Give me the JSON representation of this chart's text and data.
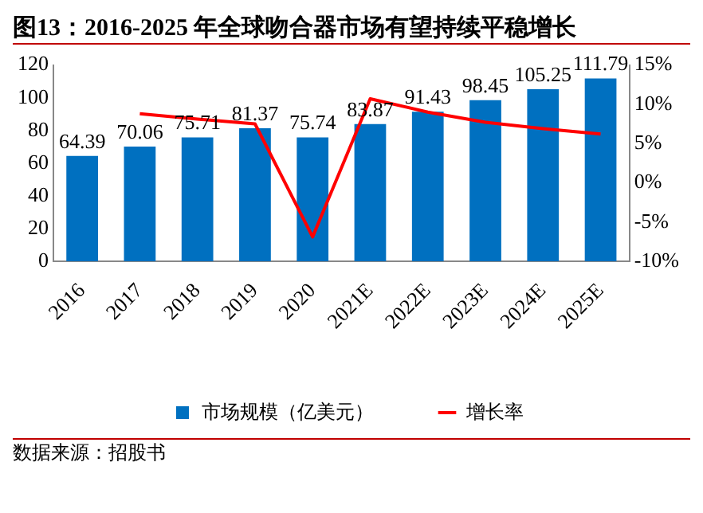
{
  "chart_data": {
    "type": "bar",
    "title": "图13：2016-2025 年全球吻合器市场有望持续平稳增长",
    "categories": [
      "2016",
      "2017",
      "2018",
      "2019",
      "2020",
      "2021E",
      "2022E",
      "2023E",
      "2024E",
      "2025E"
    ],
    "series": [
      {
        "name": "市场规模（亿美元）",
        "color": "#0070c0",
        "values": [
          64.39,
          70.06,
          75.71,
          81.37,
          75.74,
          83.87,
          91.43,
          98.45,
          105.25,
          111.79
        ],
        "value_labels": [
          "64.39",
          "70.06",
          "75.71",
          "81.37",
          "75.74",
          "83.87",
          "91.43",
          "98.45",
          "105.25",
          "111.79"
        ]
      },
      {
        "name": "增长率",
        "type": "line",
        "axis": "y2",
        "color": "#ff0000",
        "marker": "none",
        "values": [
          null,
          8.8,
          8.1,
          7.5,
          -6.9,
          10.7,
          9.0,
          7.7,
          6.9,
          6.2
        ]
      }
    ],
    "ylim": [
      0,
      120
    ],
    "yticks": [
      0,
      20,
      40,
      60,
      80,
      100,
      120
    ],
    "y2lim": [
      -10,
      15
    ],
    "y2ticks": [
      {
        "value": -10,
        "label": "-10%"
      },
      {
        "value": -5,
        "label": "-5%"
      },
      {
        "value": 0,
        "label": "0%"
      },
      {
        "value": 5,
        "label": "5%"
      },
      {
        "value": 10,
        "label": "10%"
      },
      {
        "value": 15,
        "label": "15%"
      }
    ],
    "grid": false,
    "legend": "bottom",
    "annotations": [
      "数据来源：招股书"
    ]
  }
}
